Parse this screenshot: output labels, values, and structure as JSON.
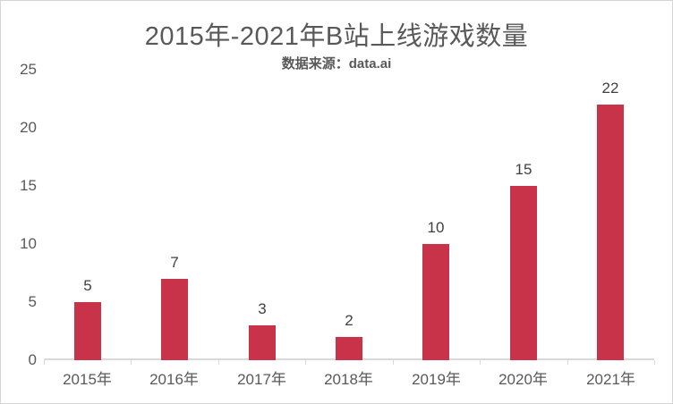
{
  "colors": {
    "bar": "#C9334A",
    "title_text": "#595959",
    "subtitle_text": "#595959",
    "axis_label_text": "#595959",
    "data_label_text": "#404040",
    "axis_line": "#D9D9D9",
    "background": "#FFFFFF",
    "border": "#D4D4D4"
  },
  "chart_data": {
    "type": "bar",
    "title": "2015年-2021年B站上线游戏数量",
    "subtitle": "数据来源：data.ai",
    "categories": [
      "2015年",
      "2016年",
      "2017年",
      "2018年",
      "2019年",
      "2020年",
      "2021年"
    ],
    "values": [
      5,
      7,
      3,
      2,
      10,
      15,
      22
    ],
    "xlabel": "",
    "ylabel": "",
    "ylim": [
      0,
      25
    ],
    "yticks": [
      0,
      5,
      10,
      15,
      20,
      25
    ],
    "grid": false,
    "legend": "none",
    "data_labels": true,
    "bar_color": "#C9334A"
  }
}
